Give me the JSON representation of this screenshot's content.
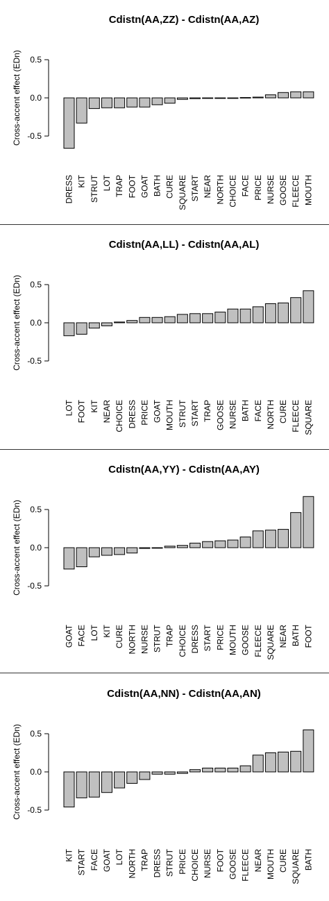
{
  "theme": {
    "bar_fill": "#c0c0c0",
    "bar_stroke": "#000000",
    "axis_color": "#000000"
  },
  "chart_data": [
    {
      "type": "bar",
      "title": "Cdistn(AA,ZZ) - Cdistn(AA,AZ)",
      "ylabel": "Cross-accent effect (EDn)",
      "xlabel": "",
      "ylim": [
        -0.5,
        0.5
      ],
      "yticks": [
        "0.5",
        "0.0",
        "-0.5"
      ],
      "grid": false,
      "categories": [
        "DRESS",
        "KIT",
        "STRUT",
        "LOT",
        "TRAP",
        "FOOT",
        "GOAT",
        "BATH",
        "CURE",
        "SQUARE",
        "START",
        "NEAR",
        "NORTH",
        "CHOICE",
        "FACE",
        "PRICE",
        "NURSE",
        "GOOSE",
        "FLEECE",
        "MOUTH"
      ],
      "values": [
        -0.66,
        -0.33,
        -0.14,
        -0.13,
        -0.13,
        -0.12,
        -0.12,
        -0.09,
        -0.07,
        -0.02,
        -0.01,
        -0.005,
        0.0,
        0.0,
        0.005,
        0.01,
        0.04,
        0.07,
        0.08,
        0.08
      ]
    },
    {
      "type": "bar",
      "title": "Cdistn(AA,LL) - Cdistn(AA,AL)",
      "ylabel": "Cross-accent effect (EDn)",
      "xlabel": "",
      "ylim": [
        -0.5,
        0.5
      ],
      "yticks": [
        "0.5",
        "0.0",
        "-0.5"
      ],
      "grid": false,
      "categories": [
        "LOT",
        "FOOT",
        "KIT",
        "NEAR",
        "CHOICE",
        "DRESS",
        "PRICE",
        "GOAT",
        "MOUTH",
        "STRUT",
        "START",
        "TRAP",
        "GOOSE",
        "NURSE",
        "BATH",
        "FACE",
        "NORTH",
        "CURE",
        "FLEECE",
        "SQUARE"
      ],
      "values": [
        -0.17,
        -0.15,
        -0.07,
        -0.04,
        0.01,
        0.03,
        0.07,
        0.07,
        0.08,
        0.11,
        0.12,
        0.12,
        0.14,
        0.18,
        0.18,
        0.21,
        0.25,
        0.26,
        0.33,
        0.42
      ]
    },
    {
      "type": "bar",
      "title": "Cdistn(AA,YY) - Cdistn(AA,AY)",
      "ylabel": "Cross-accent effect (EDn)",
      "xlabel": "",
      "ylim": [
        -0.5,
        0.5
      ],
      "yticks": [
        "0.5",
        "0.0",
        "-0.5"
      ],
      "grid": false,
      "categories": [
        "GOAT",
        "FACE",
        "LOT",
        "KIT",
        "CURE",
        "NORTH",
        "NURSE",
        "STRUT",
        "TRAP",
        "CHOICE",
        "DRESS",
        "START",
        "PRICE",
        "MOUTH",
        "GOOSE",
        "FLEECE",
        "SQUARE",
        "NEAR",
        "BATH",
        "FOOT"
      ],
      "values": [
        -0.28,
        -0.25,
        -0.12,
        -0.1,
        -0.09,
        -0.07,
        -0.01,
        0.0,
        0.02,
        0.03,
        0.06,
        0.08,
        0.09,
        0.1,
        0.14,
        0.22,
        0.23,
        0.24,
        0.46,
        0.67
      ]
    },
    {
      "type": "bar",
      "title": "Cdistn(AA,NN) - Cdistn(AA,AN)",
      "ylabel": "Cross-accent effect (EDn)",
      "xlabel": "",
      "ylim": [
        -0.5,
        0.5
      ],
      "yticks": [
        "0.5",
        "0.0",
        "-0.5"
      ],
      "grid": false,
      "categories": [
        "KIT",
        "START",
        "FACE",
        "GOAT",
        "LOT",
        "NORTH",
        "TRAP",
        "DRESS",
        "STRUT",
        "PRICE",
        "CHOICE",
        "NURSE",
        "FOOT",
        "GOOSE",
        "FLEECE",
        "NEAR",
        "MOUTH",
        "CURE",
        "SQUARE",
        "BATH"
      ],
      "values": [
        -0.46,
        -0.34,
        -0.33,
        -0.27,
        -0.21,
        -0.15,
        -0.1,
        -0.03,
        -0.03,
        -0.02,
        0.03,
        0.05,
        0.05,
        0.05,
        0.08,
        0.22,
        0.25,
        0.26,
        0.27,
        0.55
      ]
    }
  ]
}
